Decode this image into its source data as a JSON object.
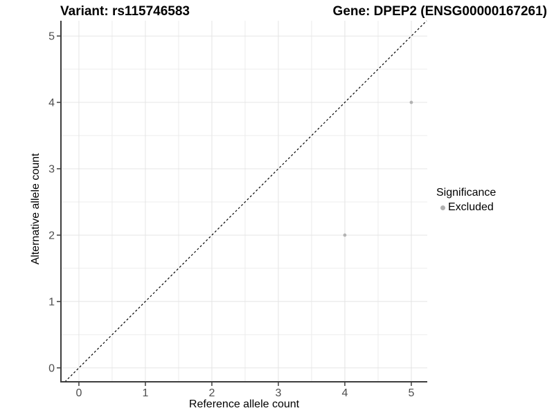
{
  "titles": {
    "left": "Variant: rs115746583",
    "right": "Gene: DPEP2 (ENSG00000167261)"
  },
  "legend": {
    "title": "Significance",
    "items": [
      {
        "label": "Excluded",
        "color": "#b0b0b0"
      }
    ]
  },
  "chart_data": {
    "type": "scatter",
    "title": "Variant: rs115746583  /  Gene: DPEP2 (ENSG00000167261)",
    "xlabel": "Reference allele count",
    "ylabel": "Alternative allele count",
    "xlim": [
      -0.27,
      5.24
    ],
    "ylim": [
      -0.21,
      5.23
    ],
    "x_ticks": [
      0,
      1,
      2,
      3,
      4,
      5
    ],
    "y_ticks": [
      0,
      1,
      2,
      3,
      4,
      5
    ],
    "x_minor": [
      0.5,
      1.5,
      2.5,
      3.5,
      4.5
    ],
    "y_minor": [
      0.5,
      1.5,
      2.5,
      3.5,
      4.5
    ],
    "grid": true,
    "legend_position": "right",
    "series": [
      {
        "name": "Excluded",
        "color": "#b3b3b3",
        "points": [
          [
            4,
            2
          ],
          [
            5,
            4
          ]
        ]
      }
    ],
    "identity_line": {
      "style": "dashed",
      "color": "#000000"
    }
  },
  "colors": {
    "major_grid": "#e4e4e4",
    "minor_grid": "#ececec",
    "axis_line": "#3c3c3c",
    "tick_label": "#4d4d4d",
    "background": "#ffffff"
  }
}
